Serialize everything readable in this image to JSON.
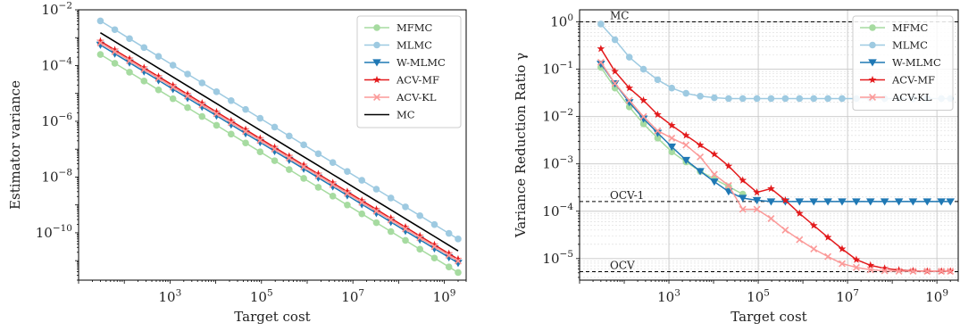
{
  "chart_data": [
    {
      "type": "line",
      "xscale": "log",
      "yscale": "log",
      "xlabel": "Target cost",
      "ylabel": "Estimator variance",
      "xlim": [
        10,
        3000000000
      ],
      "ylim": [
        2e-12,
        0.01
      ],
      "xticks": [
        {
          "value": 1000,
          "label": "10^3"
        },
        {
          "value": 100000,
          "label": "10^5"
        },
        {
          "value": 10000000,
          "label": "10^7"
        },
        {
          "value": 1000000000,
          "label": "10^9"
        }
      ],
      "yticks": [
        {
          "value": 1e-10,
          "label": "10^-10"
        },
        {
          "value": 1e-08,
          "label": "10^-8"
        },
        {
          "value": 1e-06,
          "label": "10^-6"
        },
        {
          "value": 0.0001,
          "label": "10^-4"
        },
        {
          "value": 0.01,
          "label": "10^-2"
        }
      ],
      "grid": false,
      "legend_position": "top-right",
      "x": [
        30,
        62,
        130,
        270,
        560,
        1160,
        2420,
        5020,
        10400,
        21700,
        45000,
        93500,
        194000,
        404000,
        840000,
        1750000,
        3630000,
        7540000,
        15700000,
        32600000,
        67700000,
        141000000,
        292000000,
        607000000,
        1260000000,
        2000000000
      ],
      "series": [
        {
          "name": "MFMC",
          "color": "#a6dba0",
          "marker": "circle",
          "values": [
            0.00025,
            0.000121,
            5.77e-05,
            2.78e-05,
            1.34e-05,
            6.47e-06,
            3.1e-06,
            1.49e-06,
            7.21e-07,
            3.46e-07,
            1.67e-07,
            8.02e-08,
            3.86e-08,
            1.86e-08,
            8.93e-09,
            4.29e-09,
            2.07e-09,
            9.95e-10,
            4.78e-10,
            2.3e-10,
            1.11e-10,
            5.32e-11,
            2.57e-11,
            1.24e-11,
            5.95e-12,
            3.75e-12
          ]
        },
        {
          "name": "MLMC",
          "color": "#9ecae1",
          "marker": "circle",
          "values": [
            0.004,
            0.00194,
            0.000923,
            0.000444,
            0.000214,
            0.000103,
            4.96e-05,
            2.39e-05,
            1.15e-05,
            5.53e-06,
            2.67e-06,
            1.28e-06,
            6.19e-07,
            2.97e-07,
            1.43e-07,
            6.86e-08,
            3.31e-08,
            1.59e-08,
            7.64e-09,
            3.68e-09,
            1.77e-09,
            8.51e-10,
            4.11e-10,
            1.98e-10,
            9.52e-11,
            6e-11
          ]
        },
        {
          "name": "W-MLMC",
          "color": "#1f78b4",
          "marker": "triangle-down",
          "values": [
            0.00055,
            0.000266,
            0.000127,
            6.11e-05,
            2.95e-05,
            1.42e-05,
            6.82e-06,
            3.29e-06,
            1.59e-06,
            7.6e-07,
            3.67e-07,
            1.77e-07,
            8.5e-08,
            4.09e-08,
            1.97e-08,
            9.43e-09,
            4.55e-09,
            2.19e-09,
            1.05e-09,
            5.06e-10,
            2.44e-10,
            1.17e-10,
            5.65e-11,
            2.72e-11,
            1.31e-11,
            8.25e-12
          ]
        },
        {
          "name": "ACV-MF",
          "color": "#e31a1c",
          "marker": "star",
          "values": [
            0.00075,
            0.000363,
            0.000173,
            8.33e-05,
            4.02e-05,
            1.94e-05,
            9.3e-06,
            4.48e-06,
            2.16e-06,
            1.04e-06,
            5.01e-07,
            2.41e-07,
            1.16e-07,
            5.57e-08,
            2.68e-08,
            1.29e-08,
            6.2e-09,
            2.99e-09,
            1.43e-09,
            6.9e-10,
            3.33e-10,
            1.6e-10,
            7.7e-11,
            3.71e-11,
            1.79e-11,
            1.13e-11
          ]
        },
        {
          "name": "ACV-KL",
          "color": "#fb9a99",
          "marker": "x",
          "values": [
            0.00065,
            0.000315,
            0.00015,
            7.22e-05,
            3.48e-05,
            1.68e-05,
            8.06e-06,
            3.88e-06,
            1.87e-06,
            8.99e-07,
            4.34e-07,
            2.08e-07,
            1.01e-07,
            4.83e-08,
            2.32e-08,
            1.11e-08,
            5.37e-09,
            2.59e-09,
            1.24e-09,
            5.98e-10,
            2.89e-10,
            1.38e-10,
            6.67e-11,
            3.21e-11,
            1.55e-11,
            9.75e-12
          ]
        },
        {
          "name": "MC",
          "color": "#000000",
          "marker": "none",
          "values": [
            0.0015,
            0.000726,
            0.000346,
            0.000167,
            8.04e-05,
            3.88e-05,
            1.86e-05,
            8.96e-06,
            4.33e-06,
            2.07e-06,
            1e-06,
            4.81e-07,
            2.32e-07,
            1.11e-07,
            5.36e-08,
            2.57e-08,
            1.24e-08,
            5.97e-09,
            2.87e-09,
            1.38e-09,
            6.65e-10,
            3.19e-10,
            1.54e-10,
            7.42e-11,
            3.57e-11,
            2.25e-11
          ]
        }
      ]
    },
    {
      "type": "line",
      "xscale": "log",
      "yscale": "log",
      "xlabel": "Target cost",
      "ylabel": "Variance Reduction Ratio γ",
      "xlim": [
        10,
        3000000000
      ],
      "ylim": [
        3.5e-06,
        1.8
      ],
      "xticks": [
        {
          "value": 1000,
          "label": "10^3"
        },
        {
          "value": 100000,
          "label": "10^5"
        },
        {
          "value": 10000000,
          "label": "10^7"
        },
        {
          "value": 1000000000,
          "label": "10^9"
        }
      ],
      "yticks": [
        {
          "value": 1e-05,
          "label": "10^-5"
        },
        {
          "value": 0.0001,
          "label": "10^-4"
        },
        {
          "value": 0.001,
          "label": "10^-3"
        },
        {
          "value": 0.01,
          "label": "10^-2"
        },
        {
          "value": 0.1,
          "label": "10^-1"
        },
        {
          "value": 1,
          "label": "10^0"
        }
      ],
      "grid": true,
      "legend_position": "top-right",
      "reference_lines": [
        {
          "label": "MC",
          "value": 1.0
        },
        {
          "label": "OCV-1",
          "value": 0.00016
        },
        {
          "label": "OCV",
          "value": 5.3e-06
        }
      ],
      "x": [
        30,
        62,
        130,
        270,
        560,
        1160,
        2420,
        5020,
        10400,
        21700,
        45000,
        93500,
        194000,
        404000,
        840000,
        1750000,
        3630000,
        7540000,
        15700000,
        32600000,
        67700000,
        141000000,
        292000000,
        607000000,
        1260000000,
        2000000000
      ],
      "series": [
        {
          "name": "MFMC",
          "color": "#a6dba0",
          "marker": "circle",
          "values": [
            0.11,
            0.04,
            0.016,
            0.007,
            0.0035,
            0.0018,
            0.0011,
            0.0007,
            0.00048,
            0.00033,
            0.00023,
            null,
            null,
            null,
            null,
            null,
            null,
            null,
            null,
            null,
            null,
            null,
            null,
            null,
            null,
            null
          ]
        },
        {
          "name": "MLMC",
          "color": "#9ecae1",
          "marker": "circle",
          "values": [
            0.9,
            0.42,
            0.18,
            0.1,
            0.06,
            0.04,
            0.031,
            0.027,
            0.025,
            0.024,
            0.024,
            0.024,
            0.024,
            0.024,
            0.024,
            0.024,
            0.024,
            0.024,
            0.024,
            0.024,
            0.024,
            0.024,
            0.024,
            0.024,
            0.024,
            0.024
          ]
        },
        {
          "name": "W-MLMC",
          "color": "#1f78b4",
          "marker": "triangle-down",
          "values": [
            0.13,
            0.05,
            0.02,
            0.009,
            0.0045,
            0.0023,
            0.0012,
            0.0007,
            0.00042,
            0.00026,
            0.00019,
            0.00017,
            0.00016,
            0.00016,
            0.00016,
            0.00016,
            0.00016,
            0.00016,
            0.00016,
            0.00016,
            0.00016,
            0.00016,
            0.00016,
            0.00016,
            0.00016,
            0.00016
          ]
        },
        {
          "name": "ACV-MF",
          "color": "#e31a1c",
          "marker": "star",
          "values": [
            0.27,
            0.09,
            0.04,
            0.022,
            0.011,
            0.0065,
            0.004,
            0.0025,
            0.0016,
            0.0009,
            0.00045,
            0.00025,
            0.0003,
            0.00017,
            9e-05,
            5e-05,
            2.8e-05,
            1.6e-05,
            9.5e-06,
            7.2e-06,
            6.2e-06,
            5.7e-06,
            5.5e-06,
            5.4e-06,
            5.4e-06,
            5.4e-06
          ]
        },
        {
          "name": "ACV-KL",
          "color": "#fb9a99",
          "marker": "x",
          "values": [
            0.14,
            0.05,
            0.022,
            0.01,
            0.005,
            0.0035,
            0.0025,
            0.0014,
            0.0006,
            0.00035,
            0.00011,
            0.00011,
            7e-05,
            4e-05,
            2.5e-05,
            1.6e-05,
            1.1e-05,
            7.8e-06,
            6.5e-06,
            5.8e-06,
            5.5e-06,
            5.4e-06,
            5.4e-06,
            5.4e-06,
            5.4e-06,
            5.4e-06
          ]
        }
      ]
    }
  ]
}
